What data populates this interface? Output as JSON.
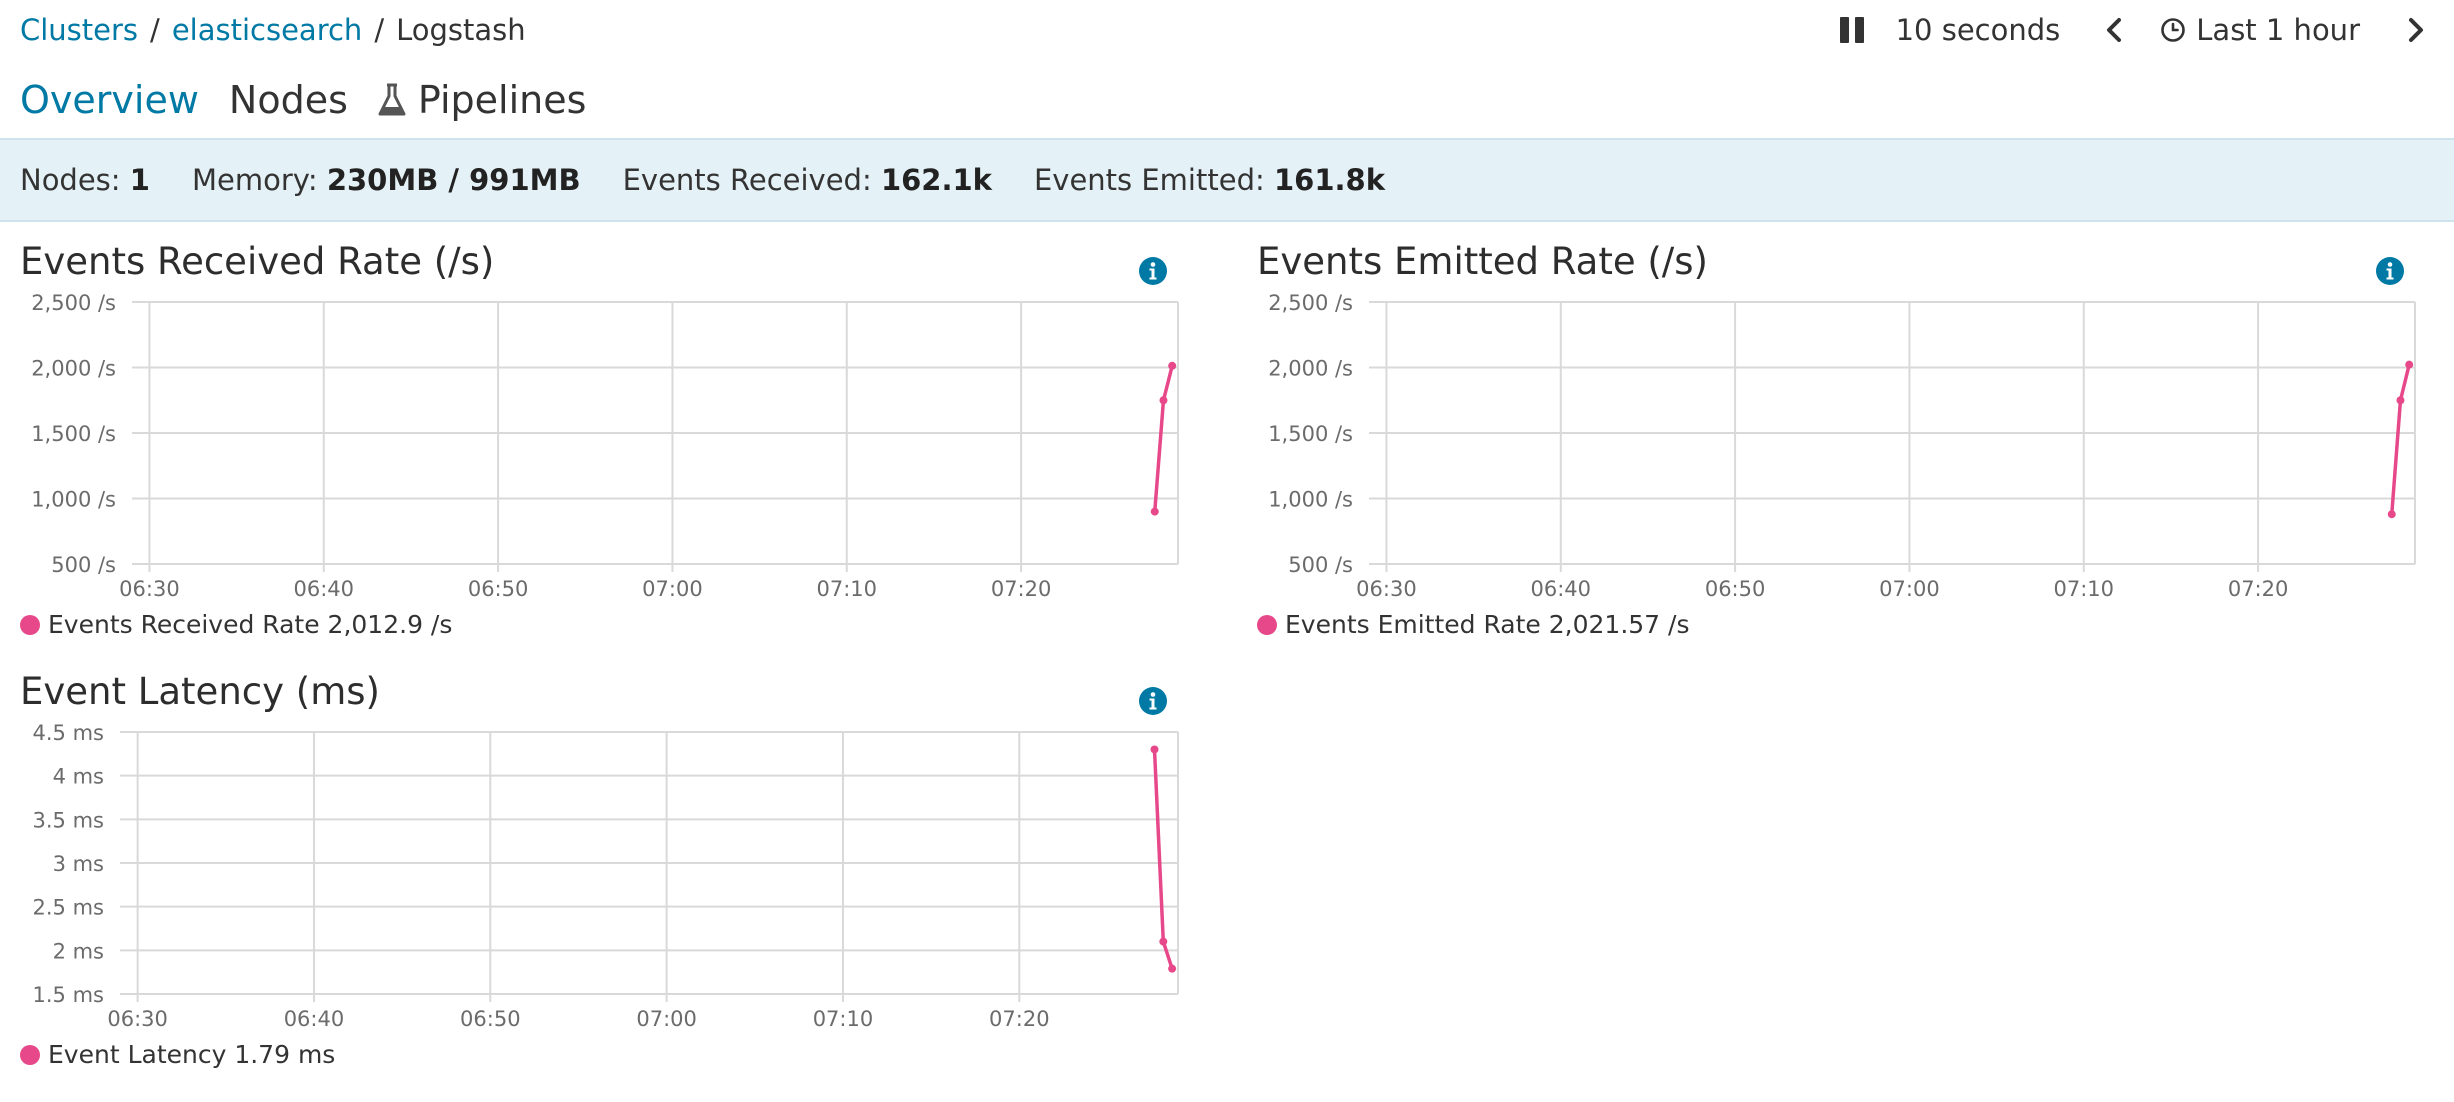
{
  "breadcrumb": {
    "items": [
      "Clusters",
      "elasticsearch"
    ],
    "separator": "/",
    "current": "Logstash"
  },
  "timepicker": {
    "interval": "10 seconds",
    "range": "Last 1 hour"
  },
  "tabs": [
    {
      "label": "Overview",
      "active": true
    },
    {
      "label": "Nodes",
      "active": false
    },
    {
      "label": "Pipelines",
      "active": false,
      "icon": "flask-icon"
    }
  ],
  "summary": [
    {
      "label": "Nodes:",
      "value": "1"
    },
    {
      "label": "Memory:",
      "value": "230MB / 991MB"
    },
    {
      "label": "Events Received:",
      "value": "162.1k"
    },
    {
      "label": "Events Emitted:",
      "value": "161.8k"
    }
  ],
  "colors": {
    "accent": "#0079a5",
    "series": "#e7488a",
    "summary_bg": "#e4f1f6",
    "grid": "#d9d9d9"
  },
  "chart_data": [
    {
      "type": "line",
      "title": "Events Received Rate (/s)",
      "x_ticks": [
        "06:30",
        "06:40",
        "06:50",
        "07:00",
        "07:10",
        "07:20"
      ],
      "y_ticks": [
        "2,500 /s",
        "2,000 /s",
        "1,500 /s",
        "1,000 /s",
        "500 /s"
      ],
      "ylim": [
        500,
        2500
      ],
      "xlim": [
        "06:29",
        "07:29"
      ],
      "series": [
        {
          "name": "Events Received Rate",
          "x": [
            "07:27:40",
            "07:28:10",
            "07:28:40"
          ],
          "values": [
            900,
            1750,
            2012.9
          ]
        }
      ],
      "legend": "Events Received Rate 2,012.9 /s"
    },
    {
      "type": "line",
      "title": "Events Emitted Rate (/s)",
      "x_ticks": [
        "06:30",
        "06:40",
        "06:50",
        "07:00",
        "07:10",
        "07:20"
      ],
      "y_ticks": [
        "2,500 /s",
        "2,000 /s",
        "1,500 /s",
        "1,000 /s",
        "500 /s"
      ],
      "ylim": [
        500,
        2500
      ],
      "xlim": [
        "06:29",
        "07:29"
      ],
      "series": [
        {
          "name": "Events Emitted Rate",
          "x": [
            "07:27:40",
            "07:28:10",
            "07:28:40"
          ],
          "values": [
            880,
            1750,
            2021.57
          ]
        }
      ],
      "legend": "Events Emitted Rate 2,021.57 /s"
    },
    {
      "type": "line",
      "title": "Event Latency (ms)",
      "x_ticks": [
        "06:30",
        "06:40",
        "06:50",
        "07:00",
        "07:10",
        "07:20"
      ],
      "y_ticks": [
        "4.5 ms",
        "4 ms",
        "3.5 ms",
        "3 ms",
        "2.5 ms",
        "2 ms",
        "1.5 ms"
      ],
      "ylim": [
        1.5,
        4.5
      ],
      "xlim": [
        "06:29",
        "07:29"
      ],
      "series": [
        {
          "name": "Event Latency",
          "x": [
            "07:27:40",
            "07:28:10",
            "07:28:40"
          ],
          "values": [
            4.3,
            2.1,
            1.79
          ]
        }
      ],
      "legend": "Event Latency 1.79 ms"
    }
  ]
}
